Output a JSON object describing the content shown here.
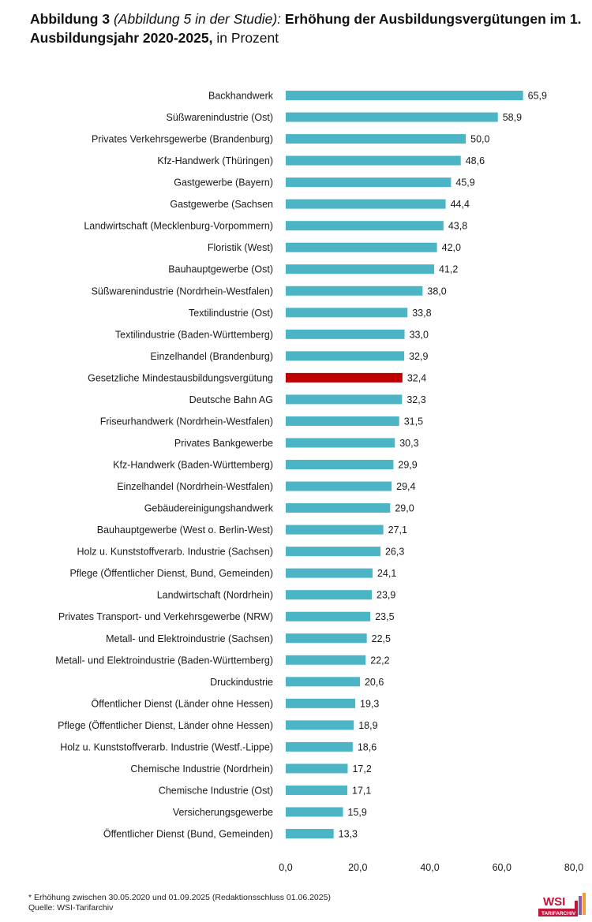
{
  "title": {
    "part1": "Abbildung 3",
    "part2": " (Abbildung 5 in der Studie):",
    "part3": " Erhöhung der Ausbildungsvergütungen im 1. Ausbildungsjahr 2020-2025,",
    "part4": " in Prozent"
  },
  "chart_data": {
    "type": "bar",
    "orientation": "horizontal",
    "xlim": [
      0,
      80
    ],
    "xticks": [
      "0,0",
      "20,0",
      "40,0",
      "60,0",
      "80,0"
    ],
    "grid": false,
    "colors": {
      "default": "#4bb5c5",
      "highlight": "#c00000"
    },
    "highlight_category": "Gesetzliche Mindestausbildungsvergütung",
    "categories": [
      "Backhandwerk",
      "Süßwarenindustrie (Ost)",
      "Privates Verkehrsgewerbe (Brandenburg)",
      "Kfz-Handwerk (Thüringen)",
      "Gastgewerbe (Bayern)",
      "Gastgewerbe (Sachsen",
      "Landwirtschaft (Mecklenburg-Vorpommern)",
      "Floristik (West)",
      "Bauhauptgewerbe (Ost)",
      "Süßwarenindustrie (Nordrhein-Westfalen)",
      "Textilindustrie (Ost)",
      "Textilindustrie (Baden-Württemberg)",
      "Einzelhandel (Brandenburg)",
      "Gesetzliche Mindestausbildungsvergütung",
      "Deutsche Bahn AG",
      "Friseurhandwerk (Nordrhein-Westfalen)",
      "Privates Bankgewerbe",
      "Kfz-Handwerk (Baden-Württemberg)",
      "Einzelhandel (Nordrhein-Westfalen)",
      "Gebäudereinigungshandwerk",
      "Bauhauptgewerbe (West o. Berlin-West)",
      "Holz u. Kunststoffverarb. Industrie (Sachsen)",
      "Pflege (Öffentlicher Dienst, Bund, Gemeinden)",
      "Landwirtschaft (Nordrhein)",
      "Privates Transport- und Verkehrsgewerbe (NRW)",
      "Metall- und Elektroindustrie (Sachsen)",
      "Metall- und Elektroindustrie (Baden-Württemberg)",
      "Druckindustrie",
      "Öffentlicher Dienst (Länder ohne Hessen)",
      "Pflege (Öffentlicher Dienst, Länder ohne Hessen)",
      "Holz u. Kunststoffverarb. Industrie (Westf.-Lippe)",
      "Chemische Industrie (Nordrhein)",
      "Chemische Industrie (Ost)",
      "Versicherungsgewerbe",
      "Öffentlicher Dienst (Bund, Gemeinden)"
    ],
    "values": [
      65.9,
      58.9,
      50.0,
      48.6,
      45.9,
      44.4,
      43.8,
      42.0,
      41.2,
      38.0,
      33.8,
      33.0,
      32.9,
      32.4,
      32.3,
      31.5,
      30.3,
      29.9,
      29.4,
      29.0,
      27.1,
      26.3,
      24.1,
      23.9,
      23.5,
      22.5,
      22.2,
      20.6,
      19.3,
      18.9,
      18.6,
      17.2,
      17.1,
      15.9,
      13.3
    ],
    "value_labels": [
      "65,9",
      "58,9",
      "50,0",
      "48,6",
      "45,9",
      "44,4",
      "43,8",
      "42,0",
      "41,2",
      "38,0",
      "33,8",
      "33,0",
      "32,9",
      "32,4",
      "32,3",
      "31,5",
      "30,3",
      "29,9",
      "29,4",
      "29,0",
      "27,1",
      "26,3",
      "24,1",
      "23,9",
      "23,5",
      "22,5",
      "22,2",
      "20,6",
      "19,3",
      "18,9",
      "18,6",
      "17,2",
      "17,1",
      "15,9",
      "13,3"
    ]
  },
  "footnote": {
    "line1": "* Erhöhung zwischen 30.05.2020 und 01.09.2025 (Redaktionsschluss 01.06.2025)",
    "line2": "Quelle: WSI-Tarifarchiv"
  },
  "logo": {
    "text": "WSI",
    "subtext": "TARIFARCHIV",
    "color": "#c0143c"
  }
}
